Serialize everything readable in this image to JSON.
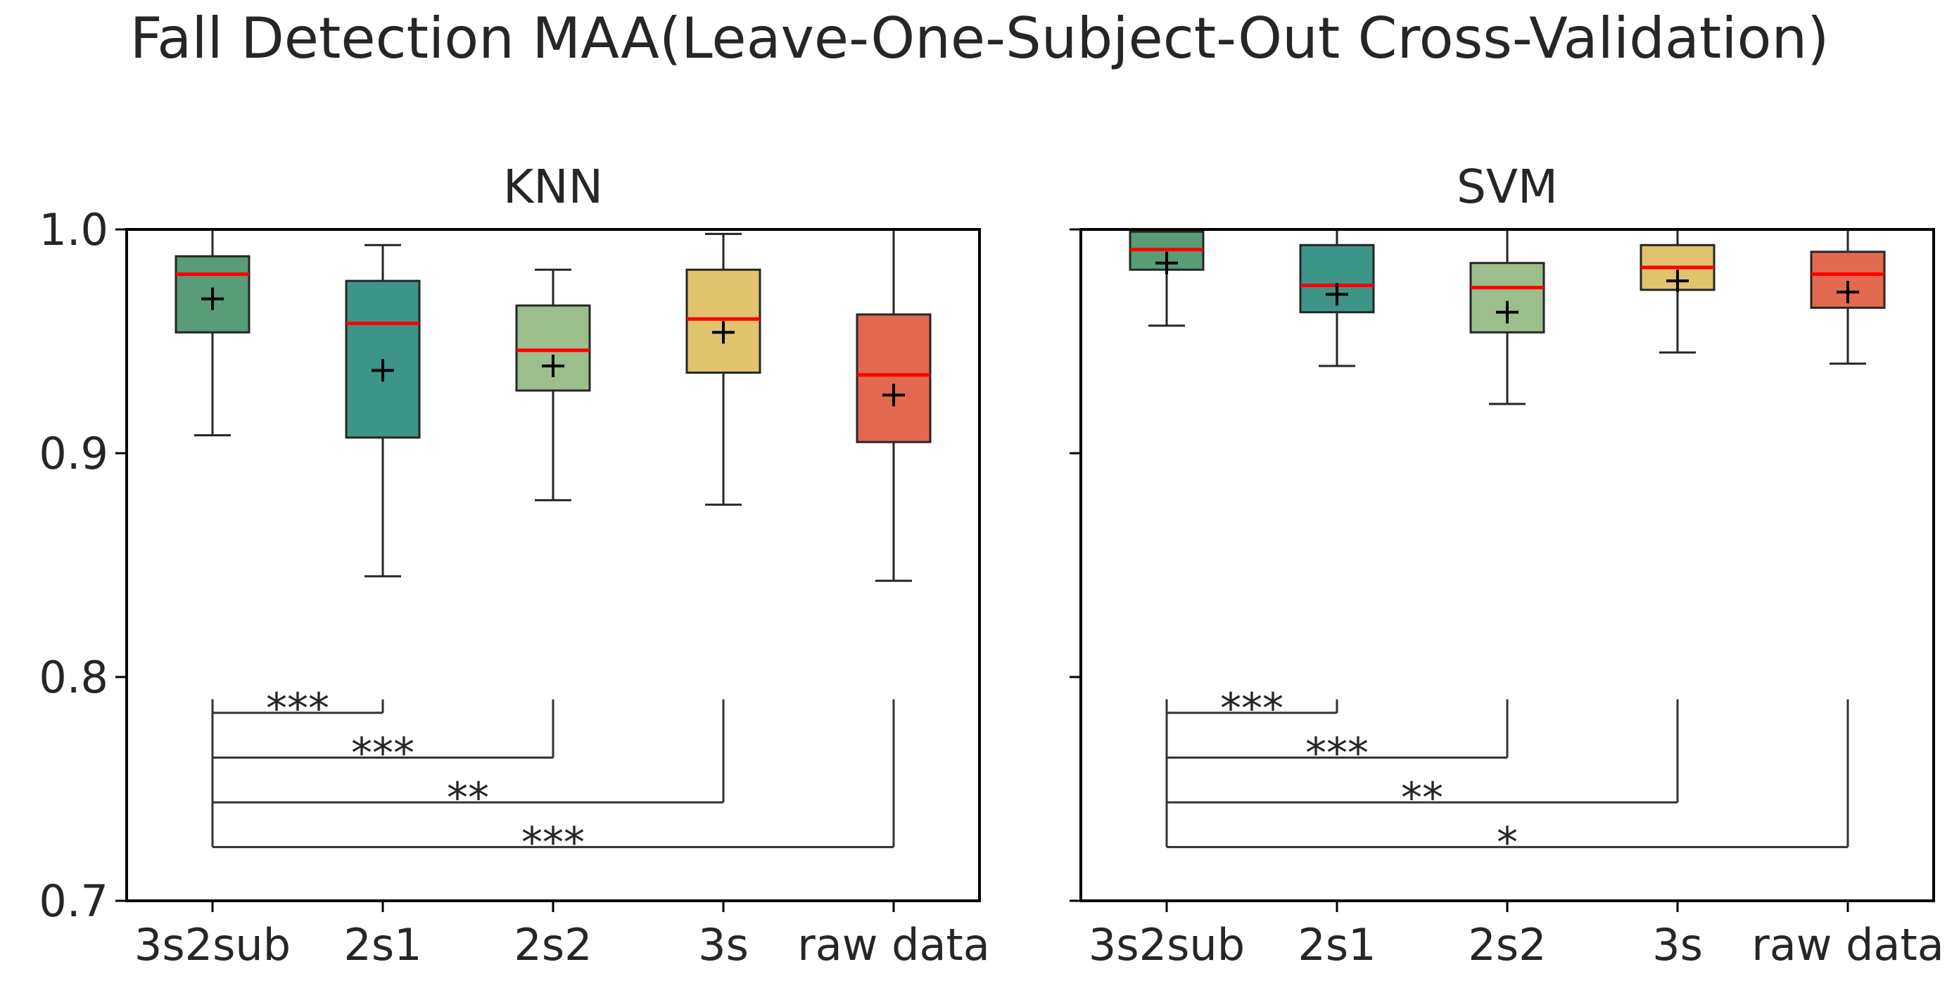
{
  "chart_data": {
    "title": "Fall Detection MAA(Leave-One-Subject-Out Cross-Validation)",
    "type": "boxplot",
    "ylim": [
      0.7,
      1.0
    ],
    "yticks": [
      0.7,
      0.8,
      0.9,
      1.0
    ],
    "ytick_labels": [
      "0.7",
      "0.8",
      "0.9",
      "1.0"
    ],
    "categories": [
      "3s2sub",
      "2s1",
      "2s2",
      "3s",
      "raw data"
    ],
    "colors": [
      "#589c78",
      "#3d9588",
      "#9bbe8c",
      "#e1c26d",
      "#e2694f"
    ],
    "median_color": "#ff0000",
    "mean_marker": "+",
    "panels": [
      {
        "title": "KNN",
        "boxes": [
          {
            "whisker_low": 0.908,
            "q1": 0.954,
            "median": 0.98,
            "q3": 0.988,
            "whisker_high": 1.0,
            "mean": 0.969
          },
          {
            "whisker_low": 0.845,
            "q1": 0.907,
            "median": 0.958,
            "q3": 0.977,
            "whisker_high": 0.993,
            "mean": 0.937
          },
          {
            "whisker_low": 0.879,
            "q1": 0.928,
            "median": 0.946,
            "q3": 0.966,
            "whisker_high": 0.982,
            "mean": 0.939
          },
          {
            "whisker_low": 0.877,
            "q1": 0.936,
            "median": 0.96,
            "q3": 0.982,
            "whisker_high": 0.998,
            "mean": 0.954
          },
          {
            "whisker_low": 0.843,
            "q1": 0.905,
            "median": 0.935,
            "q3": 0.962,
            "whisker_high": 1.0,
            "mean": 0.926
          }
        ],
        "significance": [
          {
            "from": "3s2sub",
            "to": "2s1",
            "y": 0.784,
            "label": "***"
          },
          {
            "from": "3s2sub",
            "to": "2s2",
            "y": 0.764,
            "label": "***"
          },
          {
            "from": "3s2sub",
            "to": "3s",
            "y": 0.744,
            "label": "**"
          },
          {
            "from": "3s2sub",
            "to": "raw data",
            "y": 0.724,
            "label": "***"
          }
        ]
      },
      {
        "title": "SVM",
        "boxes": [
          {
            "whisker_low": 0.957,
            "q1": 0.982,
            "median": 0.991,
            "q3": 0.999,
            "whisker_high": 1.0,
            "mean": 0.985
          },
          {
            "whisker_low": 0.939,
            "q1": 0.963,
            "median": 0.975,
            "q3": 0.993,
            "whisker_high": 1.0,
            "mean": 0.971
          },
          {
            "whisker_low": 0.922,
            "q1": 0.954,
            "median": 0.974,
            "q3": 0.985,
            "whisker_high": 1.0,
            "mean": 0.963
          },
          {
            "whisker_low": 0.945,
            "q1": 0.973,
            "median": 0.983,
            "q3": 0.993,
            "whisker_high": 1.0,
            "mean": 0.977
          },
          {
            "whisker_low": 0.94,
            "q1": 0.965,
            "median": 0.98,
            "q3": 0.99,
            "whisker_high": 1.0,
            "mean": 0.972
          }
        ],
        "significance": [
          {
            "from": "3s2sub",
            "to": "2s1",
            "y": 0.784,
            "label": "***"
          },
          {
            "from": "3s2sub",
            "to": "2s2",
            "y": 0.764,
            "label": "***"
          },
          {
            "from": "3s2sub",
            "to": "3s",
            "y": 0.744,
            "label": "**"
          },
          {
            "from": "3s2sub",
            "to": "raw data",
            "y": 0.724,
            "label": "*"
          }
        ]
      }
    ]
  }
}
